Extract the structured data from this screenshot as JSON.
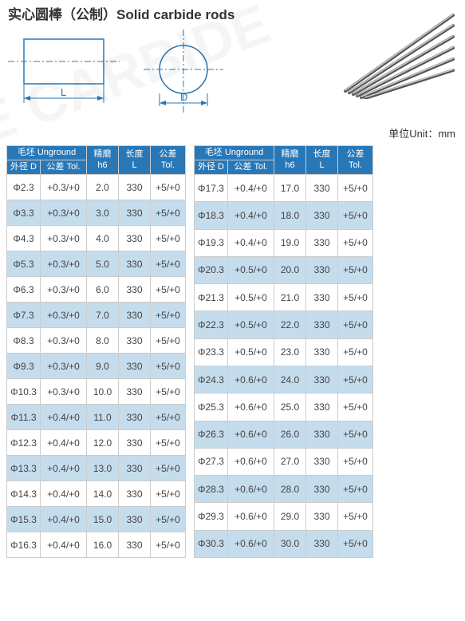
{
  "title": "实心圆棒（公制）Solid carbide rods",
  "unit_label": "单位Unit：mm",
  "diagram": {
    "L_label": "L",
    "D_label": "D"
  },
  "headers": {
    "unground": "毛坯 Unground",
    "dia": "外径 D",
    "tol1": "公差 Tol.",
    "h6": "精磨\nh6",
    "len": "长度\nL",
    "tol2": "公差\nTol."
  },
  "table1": {
    "rows": [
      {
        "d": "Φ2.3",
        "t1": "+0.3/+0",
        "h6": "2.0",
        "L": "330",
        "t2": "+5/+0"
      },
      {
        "d": "Φ3.3",
        "t1": "+0.3/+0",
        "h6": "3.0",
        "L": "330",
        "t2": "+5/+0"
      },
      {
        "d": "Φ4.3",
        "t1": "+0.3/+0",
        "h6": "4.0",
        "L": "330",
        "t2": "+5/+0"
      },
      {
        "d": "Φ5.3",
        "t1": "+0.3/+0",
        "h6": "5.0",
        "L": "330",
        "t2": "+5/+0"
      },
      {
        "d": "Φ6.3",
        "t1": "+0.3/+0",
        "h6": "6.0",
        "L": "330",
        "t2": "+5/+0"
      },
      {
        "d": "Φ7.3",
        "t1": "+0.3/+0",
        "h6": "7.0",
        "L": "330",
        "t2": "+5/+0"
      },
      {
        "d": "Φ8.3",
        "t1": "+0.3/+0",
        "h6": "8.0",
        "L": "330",
        "t2": "+5/+0"
      },
      {
        "d": "Φ9.3",
        "t1": "+0.3/+0",
        "h6": "9.0",
        "L": "330",
        "t2": "+5/+0"
      },
      {
        "d": "Φ10.3",
        "t1": "+0.3/+0",
        "h6": "10.0",
        "L": "330",
        "t2": "+5/+0"
      },
      {
        "d": "Φ11.3",
        "t1": "+0.4/+0",
        "h6": "11.0",
        "L": "330",
        "t2": "+5/+0"
      },
      {
        "d": "Φ12.3",
        "t1": "+0.4/+0",
        "h6": "12.0",
        "L": "330",
        "t2": "+5/+0"
      },
      {
        "d": "Φ13.3",
        "t1": "+0.4/+0",
        "h6": "13.0",
        "L": "330",
        "t2": "+5/+0"
      },
      {
        "d": "Φ14.3",
        "t1": "+0.4/+0",
        "h6": "14.0",
        "L": "330",
        "t2": "+5/+0"
      },
      {
        "d": "Φ15.3",
        "t1": "+0.4/+0",
        "h6": "15.0",
        "L": "330",
        "t2": "+5/+0"
      },
      {
        "d": "Φ16.3",
        "t1": "+0.4/+0",
        "h6": "16.0",
        "L": "330",
        "t2": "+5/+0"
      }
    ]
  },
  "table2": {
    "rows": [
      {
        "d": "Φ17.3",
        "t1": "+0.4/+0",
        "h6": "17.0",
        "L": "330",
        "t2": "+5/+0"
      },
      {
        "d": "Φ18.3",
        "t1": "+0.4/+0",
        "h6": "18.0",
        "L": "330",
        "t2": "+5/+0"
      },
      {
        "d": "Φ19.3",
        "t1": "+0.4/+0",
        "h6": "19.0",
        "L": "330",
        "t2": "+5/+0"
      },
      {
        "d": "Φ20.3",
        "t1": "+0.5/+0",
        "h6": "20.0",
        "L": "330",
        "t2": "+5/+0"
      },
      {
        "d": "Φ21.3",
        "t1": "+0.5/+0",
        "h6": "21.0",
        "L": "330",
        "t2": "+5/+0"
      },
      {
        "d": "Φ22.3",
        "t1": "+0.5/+0",
        "h6": "22.0",
        "L": "330",
        "t2": "+5/+0"
      },
      {
        "d": "Φ23.3",
        "t1": "+0.5/+0",
        "h6": "23.0",
        "L": "330",
        "t2": "+5/+0"
      },
      {
        "d": "Φ24.3",
        "t1": "+0.6/+0",
        "h6": "24.0",
        "L": "330",
        "t2": "+5/+0"
      },
      {
        "d": "Φ25.3",
        "t1": "+0.6/+0",
        "h6": "25.0",
        "L": "330",
        "t2": "+5/+0"
      },
      {
        "d": "Φ26.3",
        "t1": "+0.6/+0",
        "h6": "26.0",
        "L": "330",
        "t2": "+5/+0"
      },
      {
        "d": "Φ27.3",
        "t1": "+0.6/+0",
        "h6": "27.0",
        "L": "330",
        "t2": "+5/+0"
      },
      {
        "d": "Φ28.3",
        "t1": "+0.6/+0",
        "h6": "28.0",
        "L": "330",
        "t2": "+5/+0"
      },
      {
        "d": "Φ29.3",
        "t1": "+0.6/+0",
        "h6": "29.0",
        "L": "330",
        "t2": "+5/+0"
      },
      {
        "d": "Φ30.3",
        "t1": "+0.6/+0",
        "h6": "30.0",
        "L": "330",
        "t2": "+5/+0"
      }
    ]
  },
  "colors": {
    "header_bg": "#2878b8",
    "header_fg": "#ffffff",
    "row_even": "#c5dced",
    "row_odd": "#ffffff",
    "border": "#cccccc",
    "text": "#444444"
  }
}
